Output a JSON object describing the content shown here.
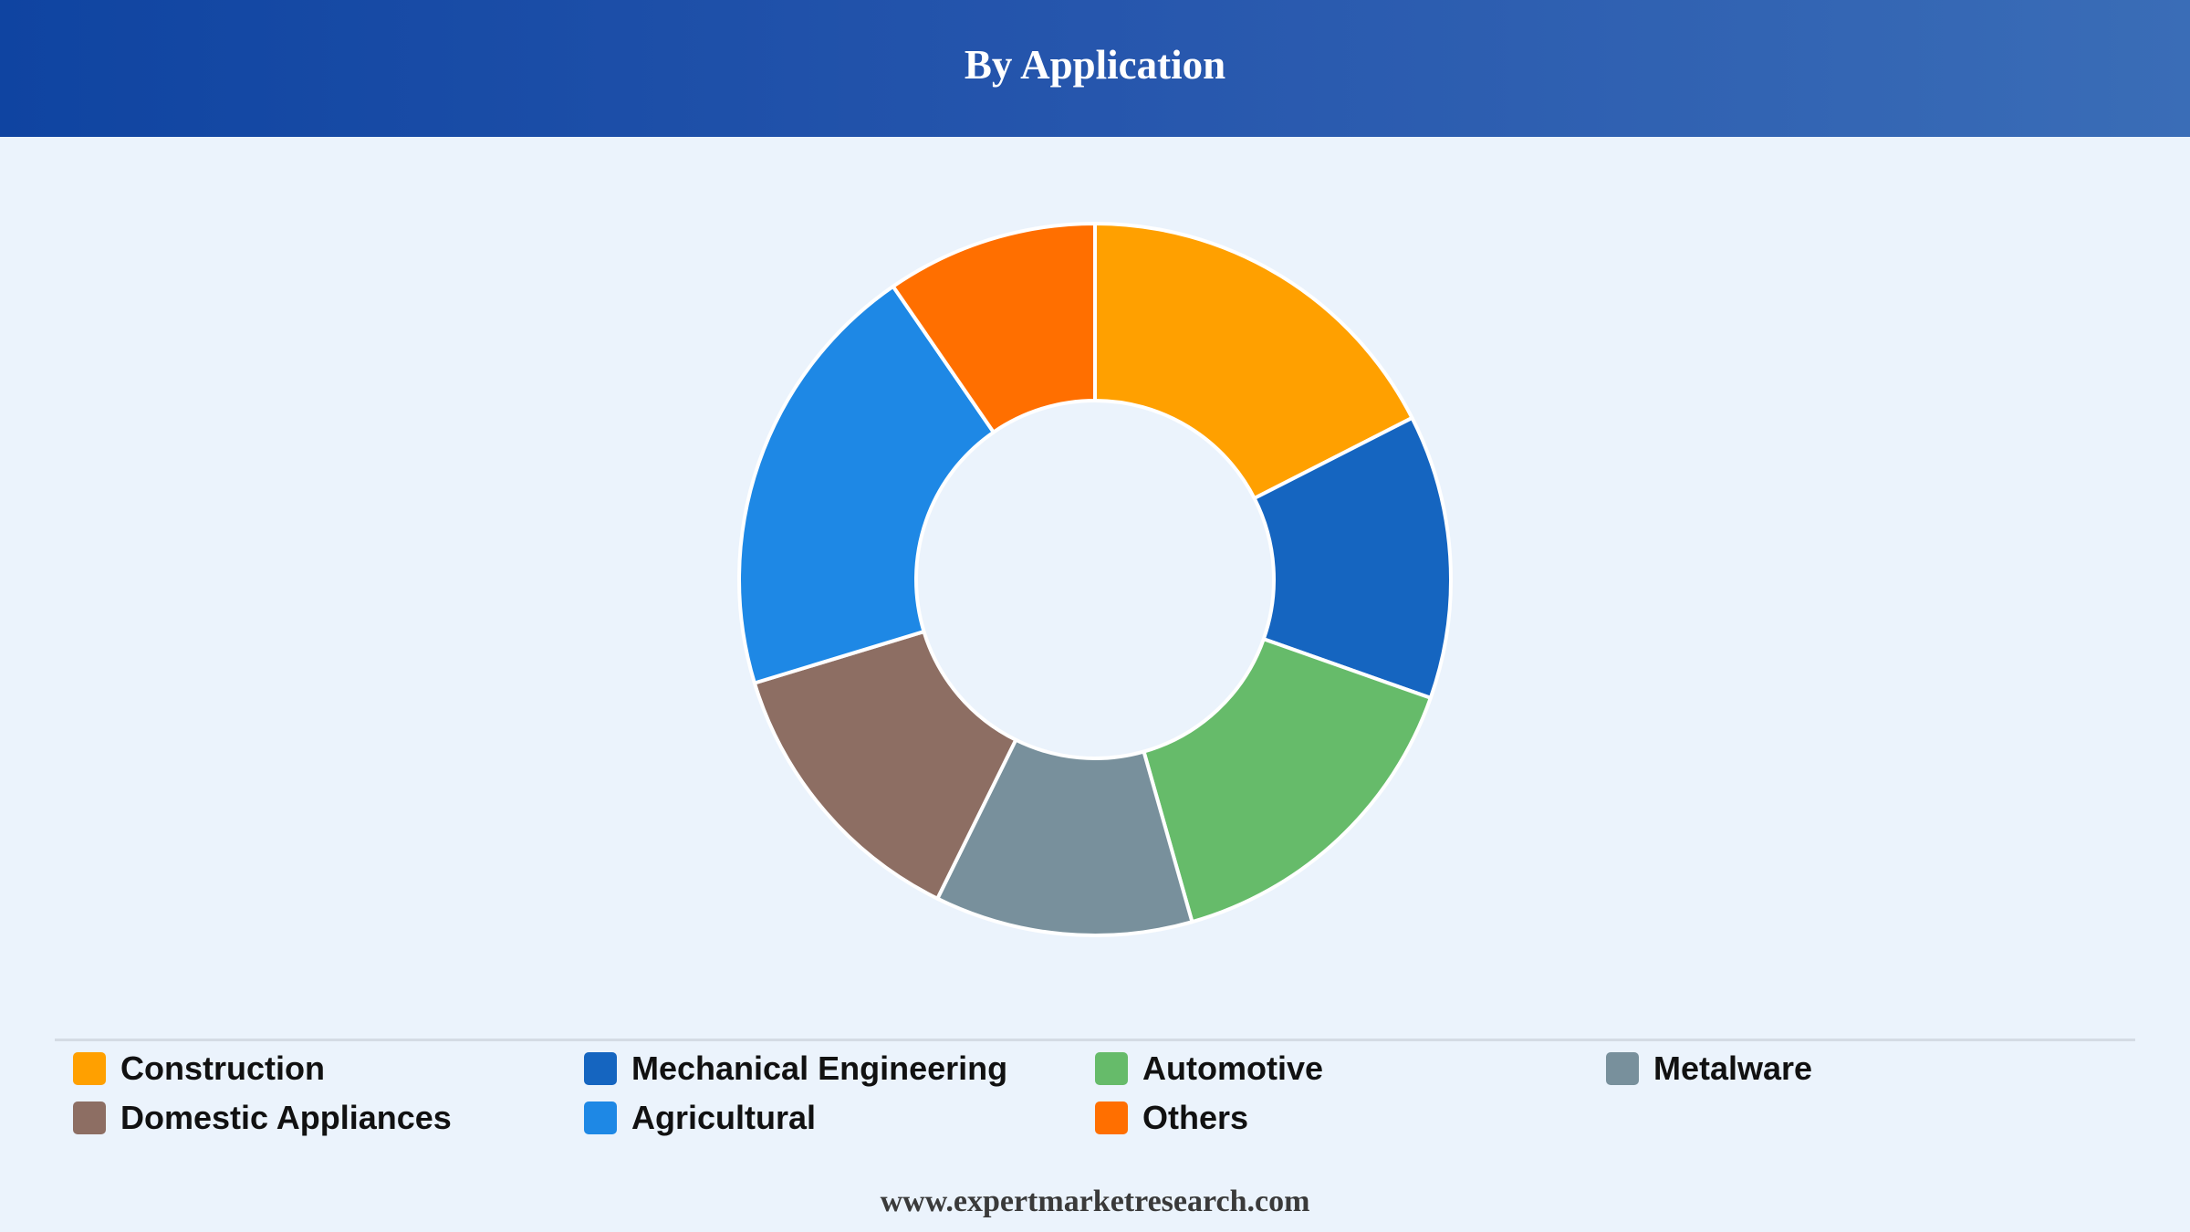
{
  "header": {
    "title": "By Application"
  },
  "chart_data": {
    "type": "pie",
    "variant": "donut",
    "title": "By Application",
    "categories": [
      "Construction",
      "Mechanical Engineering",
      "Automotive",
      "Metalware",
      "Domestic Appliances",
      "Agricultural",
      "Others"
    ],
    "values": [
      17.5,
      12.9,
      15.2,
      11.7,
      13.0,
      20.1,
      9.6
    ],
    "colors": [
      "#ffa000",
      "#1565c0",
      "#66bb6a",
      "#78909c",
      "#8d6e63",
      "#1e88e5",
      "#ff6f00"
    ],
    "legend_position": "bottom",
    "start": "top",
    "direction": "clockwise"
  },
  "legend": {
    "items": [
      {
        "label": "Construction",
        "color": "#ffa000"
      },
      {
        "label": "Mechanical Engineering",
        "color": "#1565c0"
      },
      {
        "label": "Automotive",
        "color": "#66bb6a"
      },
      {
        "label": "Metalware",
        "color": "#78909c"
      },
      {
        "label": "Domestic Appliances",
        "color": "#8d6e63"
      },
      {
        "label": "Agricultural",
        "color": "#1e88e5"
      },
      {
        "label": "Others",
        "color": "#ff6f00"
      }
    ]
  },
  "footer": {
    "source": "www.expertmarketresearch.com"
  }
}
